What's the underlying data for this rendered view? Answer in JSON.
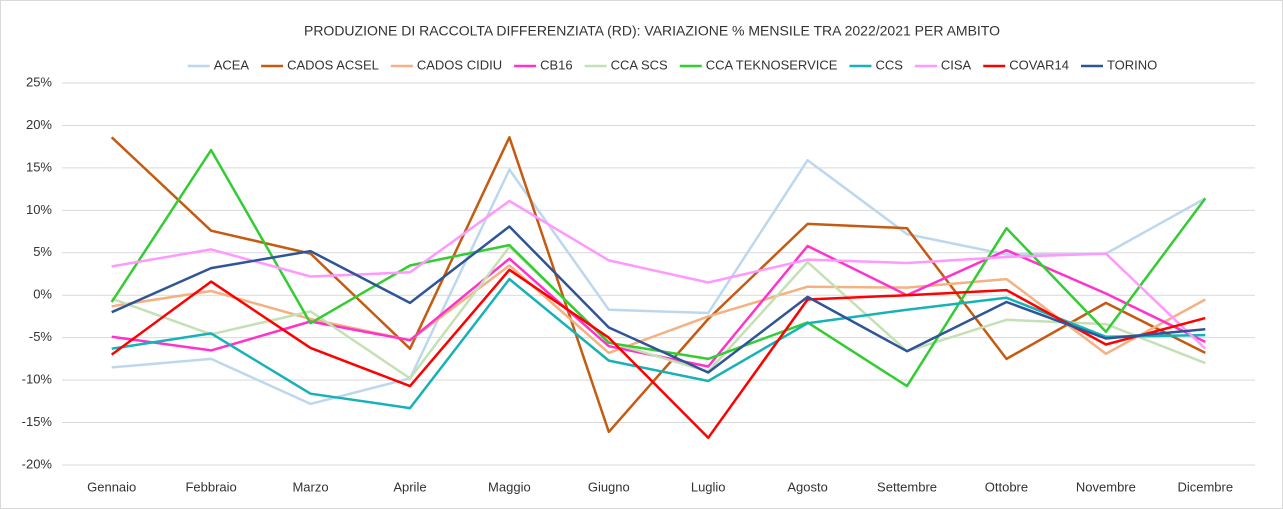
{
  "chart_data": {
    "type": "line",
    "title": "PRODUZIONE DI RACCOLTA DIFFERENZIATA (RD): VARIAZIONE % MENSILE TRA 2022/2021 PER AMBITO",
    "categories": [
      "Gennaio",
      "Febbraio",
      "Marzo",
      "Aprile",
      "Maggio",
      "Giugno",
      "Luglio",
      "Agosto",
      "Settembre",
      "Ottobre",
      "Novembre",
      "Dicembre"
    ],
    "series": [
      {
        "name": "ACEA",
        "color": "#bdd7ee",
        "values": [
          -8.5,
          -7.5,
          -12.8,
          -9.8,
          14.8,
          -1.7,
          -2.1,
          15.9,
          7.2,
          4.8,
          4.9,
          11.4
        ]
      },
      {
        "name": "CADOS ACSEL",
        "color": "#c55a11",
        "values": [
          18.6,
          7.6,
          4.9,
          -6.3,
          18.6,
          -16.1,
          -2.8,
          8.4,
          7.9,
          -7.5,
          -0.9,
          -6.8
        ]
      },
      {
        "name": "CADOS CIDIU",
        "color": "#f4b183",
        "values": [
          -1.3,
          0.5,
          -2.8,
          -5.3,
          3.5,
          -6.8,
          -2.5,
          1.0,
          0.9,
          1.9,
          -6.9,
          -0.5
        ]
      },
      {
        "name": "CB16",
        "color": "#ff33cc",
        "values": [
          -4.9,
          -6.5,
          -3.1,
          -5.3,
          4.3,
          -6.0,
          -8.4,
          5.8,
          0.0,
          5.3,
          0.2,
          -5.5
        ]
      },
      {
        "name": "CCA SCS",
        "color": "#c5e0b4",
        "values": [
          -0.4,
          -4.6,
          -1.9,
          -9.8,
          5.7,
          -5.5,
          -9.0,
          3.9,
          -6.6,
          -2.9,
          -3.4,
          -8.0
        ]
      },
      {
        "name": "CCA TEKNOSERVICE",
        "color": "#33cc33",
        "values": [
          -0.8,
          17.1,
          -3.3,
          3.5,
          5.9,
          -5.6,
          -7.5,
          -3.2,
          -10.7,
          7.9,
          -4.3,
          11.4
        ]
      },
      {
        "name": "CCS",
        "color": "#17b2b8",
        "values": [
          -6.3,
          -4.5,
          -11.6,
          -13.3,
          1.9,
          -7.7,
          -10.1,
          -3.3,
          -1.7,
          -0.3,
          -4.9,
          -4.7
        ]
      },
      {
        "name": "CISA",
        "color": "#ff99ff",
        "values": [
          3.4,
          5.4,
          2.2,
          2.7,
          11.1,
          4.1,
          1.5,
          4.2,
          3.8,
          4.5,
          4.9,
          -6.3
        ]
      },
      {
        "name": "COVAR14",
        "color": "#ff0000",
        "values": [
          -7.0,
          1.6,
          -6.2,
          -10.7,
          3.0,
          -5.0,
          -16.8,
          -0.5,
          0.0,
          0.6,
          -5.8,
          -2.7
        ]
      },
      {
        "name": "TORINO",
        "color": "#2f5597",
        "values": [
          -2.0,
          3.2,
          5.2,
          -0.9,
          8.1,
          -3.8,
          -9.1,
          -0.2,
          -6.6,
          -0.8,
          -5.1,
          -4.0
        ]
      }
    ],
    "ylim": [
      -20,
      25
    ],
    "yticks": [
      {
        "value": -20,
        "label": "-20%"
      },
      {
        "value": -15,
        "label": "-15%"
      },
      {
        "value": -10,
        "label": "-10%"
      },
      {
        "value": -5,
        "label": "-5%"
      },
      {
        "value": 0,
        "label": "0%"
      },
      {
        "value": 5,
        "label": "5%"
      },
      {
        "value": 10,
        "label": "10%"
      },
      {
        "value": 15,
        "label": "15%"
      },
      {
        "value": 20,
        "label": "20%"
      },
      {
        "value": 25,
        "label": "25%"
      }
    ],
    "grid": true,
    "legend": "top"
  }
}
